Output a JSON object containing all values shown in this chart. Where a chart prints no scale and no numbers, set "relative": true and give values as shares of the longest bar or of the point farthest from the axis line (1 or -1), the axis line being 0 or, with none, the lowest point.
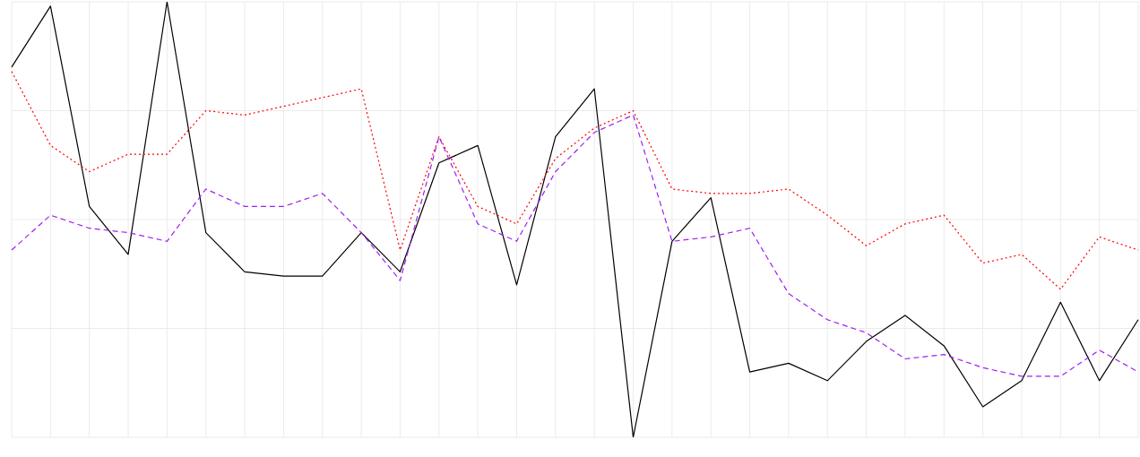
{
  "chart_data": {
    "type": "line",
    "relative": true,
    "grid": true,
    "marker": "none",
    "categories": [
      null,
      null,
      null,
      null,
      null,
      null,
      null,
      null,
      null,
      null,
      null,
      null,
      null,
      null,
      null,
      null,
      null,
      null,
      null,
      null,
      null,
      null,
      null,
      null,
      null,
      null,
      null,
      null,
      null,
      null
    ],
    "series": [
      {
        "color": "#000000",
        "line_style": "solid",
        "values": [
          0.85,
          0.99,
          0.53,
          0.42,
          1,
          0.47,
          0.38,
          0.37,
          0.37,
          0.47,
          0.38,
          0.63,
          0.67,
          0.35,
          0.69,
          0.8,
          0,
          0.45,
          0.55,
          0.15,
          0.17,
          0.13,
          0.22,
          0.28,
          0.21,
          0.07,
          0.13,
          0.31,
          0.13,
          0.27
        ]
      },
      {
        "color": "#ff0000",
        "line_style": "dotted",
        "values": [
          0.84,
          0.67,
          0.61,
          0.65,
          0.65,
          0.75,
          0.74,
          0.76,
          0.78,
          0.8,
          0.43,
          0.69,
          0.53,
          0.49,
          0.64,
          0.71,
          0.75,
          0.57,
          0.56,
          0.56,
          0.57,
          0.51,
          0.44,
          0.49,
          0.51,
          0.4,
          0.42,
          0.34,
          0.46,
          0.43
        ]
      },
      {
        "color": "#a020f0",
        "line_style": "dashed",
        "values": [
          0.43,
          0.51,
          0.48,
          0.47,
          0.45,
          0.57,
          0.53,
          0.53,
          0.56,
          0.47,
          0.36,
          0.69,
          0.49,
          0.45,
          0.61,
          0.7,
          0.74,
          0.45,
          0.46,
          0.48,
          0.33,
          0.27,
          0.24,
          0.18,
          0.19,
          0.16,
          0.14,
          0.14,
          0.2,
          0.15
        ]
      }
    ]
  }
}
